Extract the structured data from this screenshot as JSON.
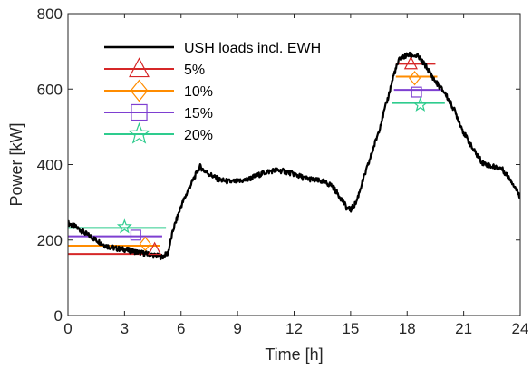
{
  "chart_data": {
    "type": "line",
    "title": "",
    "xlabel": "Time [h]",
    "ylabel": "Power [kW]",
    "xlim": [
      0,
      24
    ],
    "ylim": [
      0,
      800
    ],
    "xticks": [
      0,
      3,
      6,
      9,
      12,
      15,
      18,
      21,
      24
    ],
    "yticks": [
      0,
      200,
      400,
      600,
      800
    ],
    "grid": false,
    "legend_position": "top-left",
    "series": [
      {
        "name": "USH loads incl. EWH",
        "color": "#000000",
        "marker": "none",
        "x": [
          0,
          0.5,
          1,
          1.5,
          2,
          2.5,
          3,
          3.5,
          4,
          4.5,
          5,
          5.3,
          5.6,
          6,
          6.5,
          7,
          7.2,
          7.5,
          8,
          8.5,
          9,
          9.5,
          10,
          10.5,
          11,
          11.5,
          12,
          12.5,
          13,
          13.5,
          14,
          14.5,
          14.8,
          15,
          15.3,
          15.6,
          16,
          16.5,
          17,
          17.3,
          17.6,
          18,
          18.3,
          18.6,
          19,
          19.5,
          20,
          20.5,
          21,
          21.5,
          22,
          22.5,
          23,
          23.5,
          24
        ],
        "y": [
          245,
          232,
          215,
          200,
          185,
          178,
          175,
          170,
          165,
          160,
          155,
          165,
          230,
          290,
          345,
          395,
          385,
          375,
          360,
          355,
          355,
          360,
          370,
          380,
          385,
          382,
          375,
          365,
          360,
          355,
          345,
          310,
          285,
          280,
          300,
          350,
          410,
          490,
          580,
          640,
          680,
          690,
          690,
          685,
          660,
          620,
          590,
          545,
          485,
          440,
          405,
          395,
          390,
          360,
          315
        ]
      },
      {
        "name": "5%",
        "color": "#d62728",
        "marker": "triangle",
        "x": [
          0,
          4.8
        ],
        "y": [
          163,
          163
        ],
        "x2": [
          17.4,
          19.5
        ],
        "y2": [
          667,
          667
        ],
        "marker_points": [
          [
            4.6,
            175
          ],
          [
            18.2,
            667
          ]
        ]
      },
      {
        "name": "10%",
        "color": "#ff8c00",
        "marker": "diamond",
        "x": [
          0,
          4.9
        ],
        "y": [
          185,
          185
        ],
        "x2": [
          17.4,
          19.6
        ],
        "y2": [
          633,
          633
        ],
        "marker_points": [
          [
            4.1,
            190
          ],
          [
            18.4,
            629
          ]
        ]
      },
      {
        "name": "15%",
        "color": "#7e3fd1",
        "marker": "square",
        "x": [
          0,
          5.0
        ],
        "y": [
          210,
          210
        ],
        "x2": [
          17.3,
          19.8
        ],
        "y2": [
          598,
          598
        ],
        "marker_points": [
          [
            3.6,
            213
          ],
          [
            18.5,
            592
          ]
        ]
      },
      {
        "name": "20%",
        "color": "#2ecc8e",
        "marker": "star",
        "x": [
          0,
          5.2
        ],
        "y": [
          232,
          232
        ],
        "x2": [
          17.2,
          20.0
        ],
        "y2": [
          563,
          563
        ],
        "marker_points": [
          [
            3.0,
            235
          ],
          [
            18.7,
            558
          ]
        ]
      }
    ]
  }
}
